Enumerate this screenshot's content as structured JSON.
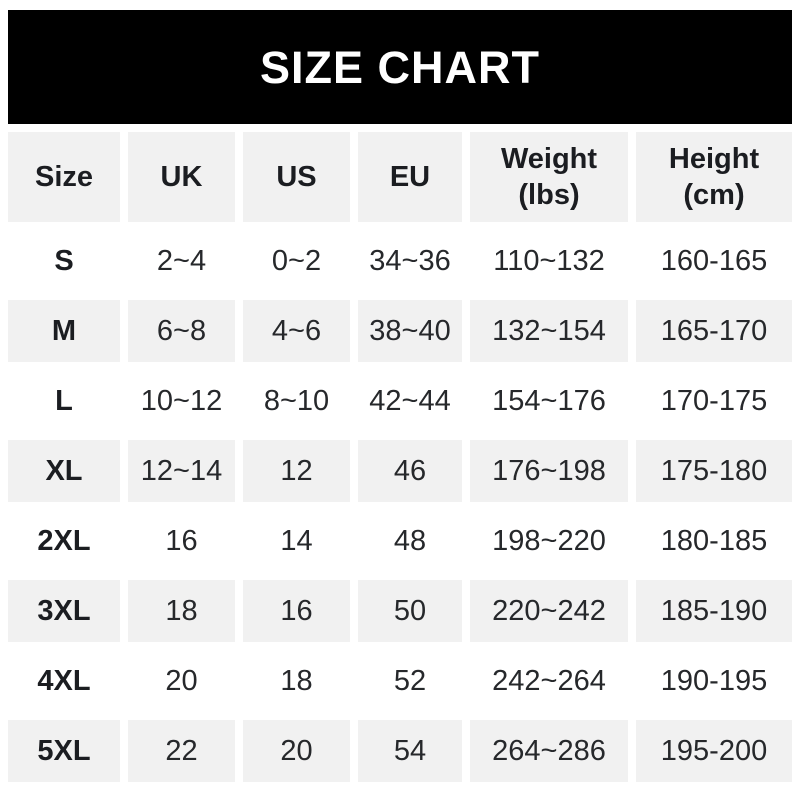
{
  "banner": {
    "title": "SIZE CHART"
  },
  "chart_data": {
    "type": "table",
    "title": "SIZE CHART",
    "columns": [
      "Size",
      "UK",
      "US",
      "EU",
      "Weight (lbs)",
      "Height (cm)"
    ],
    "column_headers_display": [
      "Size",
      "UK",
      "US",
      "EU",
      "Weight\n(lbs)",
      "Height\n(cm)"
    ],
    "column_keys": [
      "size",
      "uk",
      "us",
      "eu",
      "weight",
      "height"
    ],
    "rows": [
      [
        "S",
        "2~4",
        "0~2",
        "34~36",
        "110~132",
        "160-165"
      ],
      [
        "M",
        "6~8",
        "4~6",
        "38~40",
        "132~154",
        "165-170"
      ],
      [
        "L",
        "10~12",
        "8~10",
        "42~44",
        "154~176",
        "170-175"
      ],
      [
        "XL",
        "12~14",
        "12",
        "46",
        "176~198",
        "175-180"
      ],
      [
        "2XL",
        "16",
        "14",
        "48",
        "198~220",
        "180-185"
      ],
      [
        "3XL",
        "18",
        "16",
        "50",
        "220~242",
        "185-190"
      ],
      [
        "4XL",
        "20",
        "18",
        "52",
        "242~264",
        "190-195"
      ],
      [
        "5XL",
        "22",
        "20",
        "54",
        "264~286",
        "195-200"
      ]
    ],
    "layout_hints": {
      "header_row_shaded": true,
      "alternating_rows": "white then light-gray starting at row S",
      "range_separator_body": "~",
      "range_separator_height": "-"
    }
  },
  "colors": {
    "page_bg": "#ffffff",
    "banner_bg": "#000000",
    "banner_text": "#ffffff",
    "row_bg": "#ffffff",
    "row_alt_bg": "#f1f1f1",
    "text": "#26282b",
    "header_text": "#1b1d21"
  }
}
